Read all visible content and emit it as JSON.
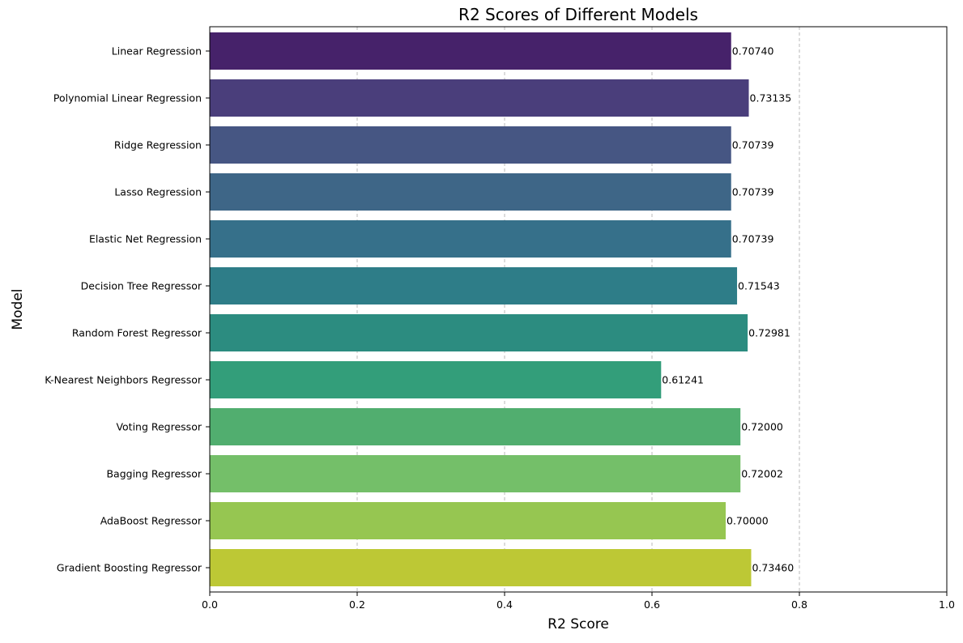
{
  "chart_data": {
    "type": "bar",
    "orientation": "horizontal",
    "title": "R2 Scores of Different Models",
    "xlabel": "R2 Score",
    "ylabel": "Model",
    "xlim": [
      0,
      1.0
    ],
    "xticks": [
      0.0,
      0.2,
      0.4,
      0.6,
      0.8,
      1.0
    ],
    "xtick_labels": [
      "0.0",
      "0.2",
      "0.4",
      "0.6",
      "0.8",
      "1.0"
    ],
    "grid": "x-axis dashed",
    "categories": [
      "Linear Regression",
      "Polynomial Linear Regression",
      "Ridge Regression",
      "Lasso Regression",
      "Elastic Net Regression",
      "Decision Tree Regressor",
      "Random Forest Regressor",
      "K-Nearest Neighbors Regressor",
      "Voting Regressor",
      "Bagging Regressor",
      "AdaBoost Regressor",
      "Gradient Boosting Regressor"
    ],
    "values": [
      0.7074,
      0.73135,
      0.70739,
      0.70739,
      0.70739,
      0.71543,
      0.72981,
      0.61241,
      0.72,
      0.72002,
      0.7,
      0.7346
    ],
    "value_labels": [
      "0.70740",
      "0.73135",
      "0.70739",
      "0.70739",
      "0.70739",
      "0.71543",
      "0.72981",
      "0.61241",
      "0.72000",
      "0.72002",
      "0.70000",
      "0.73460"
    ],
    "colors": [
      "#46226a",
      "#4a3e7b",
      "#465683",
      "#3e6687",
      "#36708a",
      "#2e7d88",
      "#2c8c80",
      "#339e7a",
      "#51ae6f",
      "#74bf69",
      "#96c651",
      "#bdc835"
    ]
  }
}
